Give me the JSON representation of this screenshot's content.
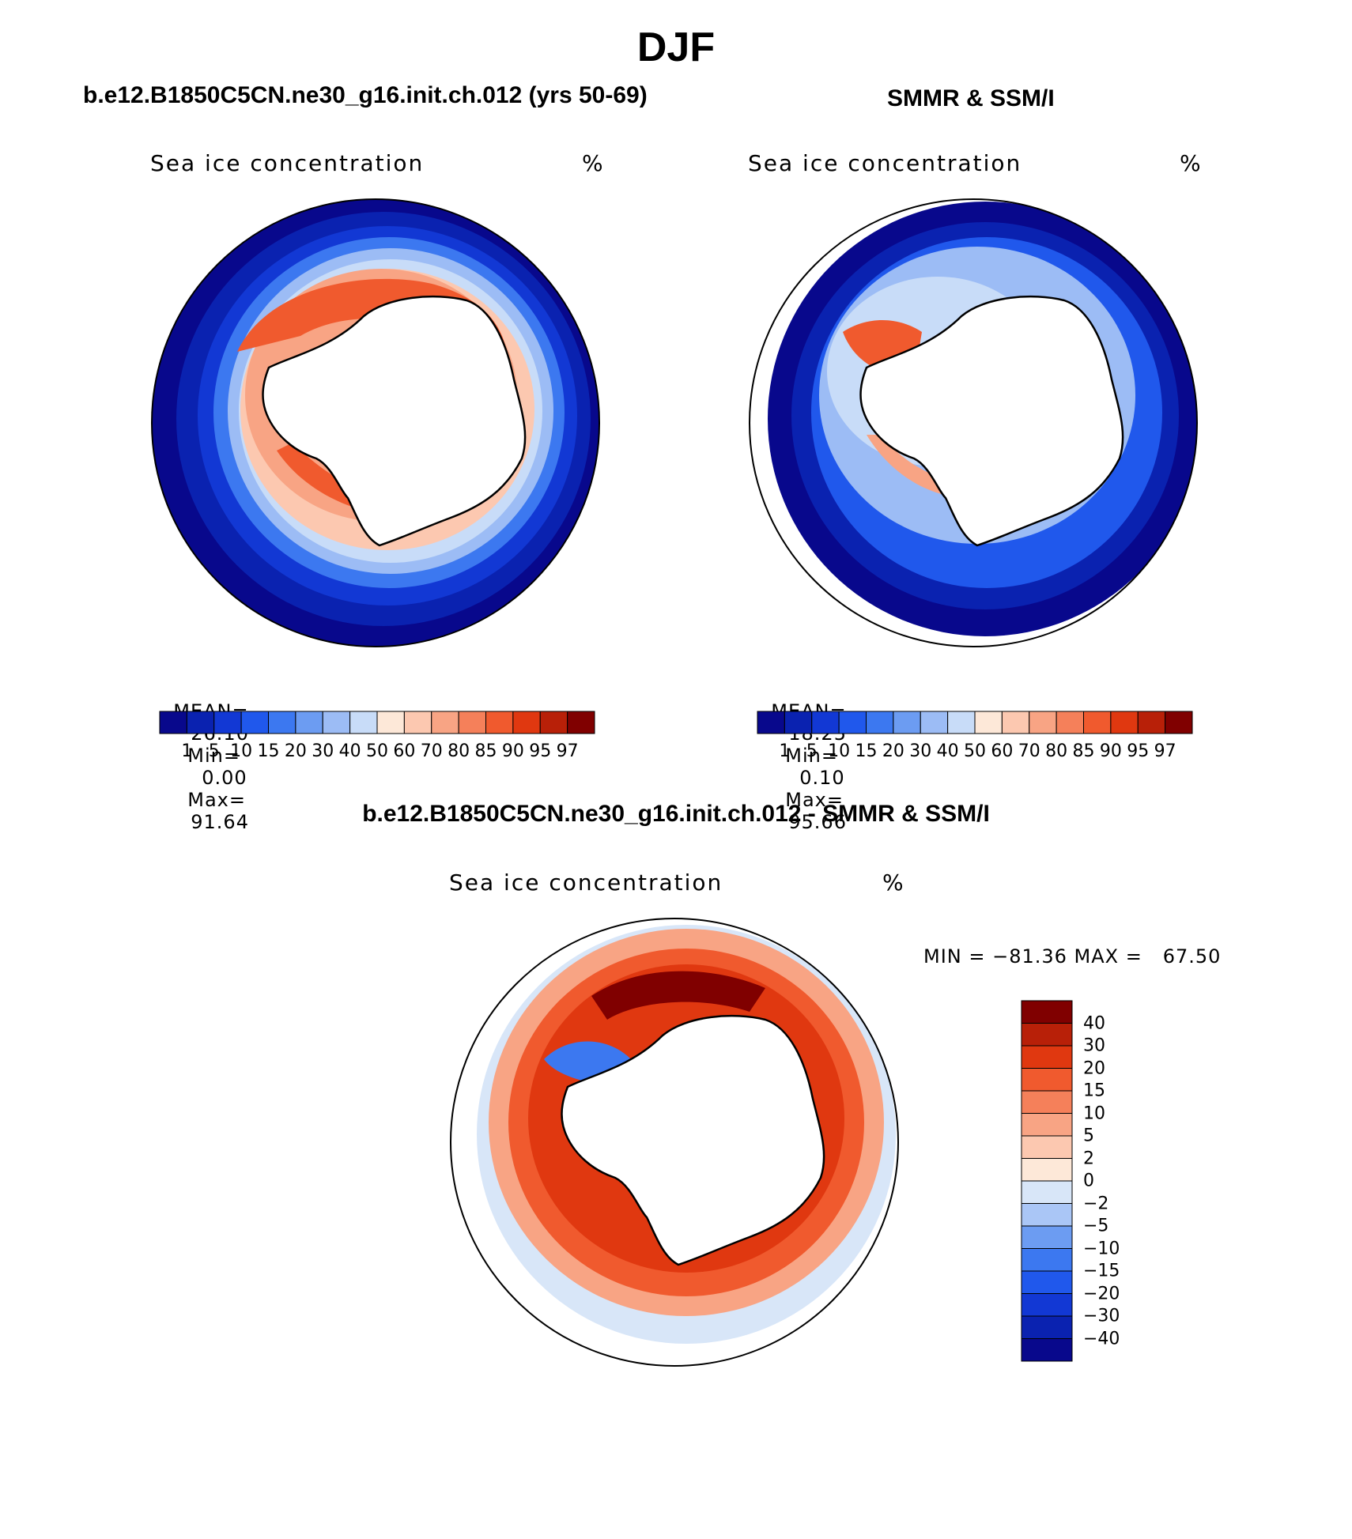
{
  "figure": {
    "title": "DJF",
    "panels": [
      {
        "id": "model",
        "title": "b.e12.B1850C5CN.ne30_g16.init.ch.012 (yrs 50-69)",
        "left_label": "Sea ice concentration",
        "units": "%",
        "stats": {
          "mean_label": "MEAN=",
          "mean": "26.10",
          "min_label": "Min=",
          "min": "0.00",
          "max_label": "Max=",
          "max": "91.64"
        }
      },
      {
        "id": "obs",
        "title": "SMMR & SSM/I",
        "left_label": "Sea ice concentration",
        "units": "%",
        "stats": {
          "mean_label": "MEAN=",
          "mean": "18.25",
          "min_label": "Min=",
          "min": "0.10",
          "max_label": "Max=",
          "max": "95.66"
        }
      },
      {
        "id": "diff",
        "title": "b.e12.B1850C5CN.ne30_g16.init.ch.012 - SMMR & SSM/I",
        "left_label": "Sea ice concentration",
        "units": "%",
        "minmax_text": "MIN = −81.36 MAX =   67.50"
      }
    ]
  },
  "colorbars": {
    "concentration": {
      "levels": [
        "1",
        "5",
        "10",
        "15",
        "20",
        "30",
        "40",
        "50",
        "60",
        "70",
        "80",
        "85",
        "90",
        "95",
        "97"
      ],
      "colors": [
        "#08088c",
        "#0a22b0",
        "#1238d4",
        "#2058ec",
        "#3c78f0",
        "#6c9cf2",
        "#9cbcf5",
        "#c8dcf8",
        "#fde8d8",
        "#fcc8b0",
        "#f8a484",
        "#f5805a",
        "#f05a2e",
        "#e03810",
        "#b82008",
        "#800000"
      ]
    },
    "difference": {
      "levels": [
        "40",
        "30",
        "20",
        "15",
        "10",
        "5",
        "2",
        "0",
        "−2",
        "−5",
        "−10",
        "−15",
        "−20",
        "−30",
        "−40"
      ],
      "colors": [
        "#800000",
        "#b82008",
        "#e03810",
        "#f05a2e",
        "#f5805a",
        "#f8a484",
        "#fcc8b0",
        "#fde8d8",
        "#d8e6f8",
        "#aac6f6",
        "#6c9cf2",
        "#3c78f0",
        "#2058ec",
        "#1238d4",
        "#0a22b0",
        "#08088c"
      ]
    }
  }
}
